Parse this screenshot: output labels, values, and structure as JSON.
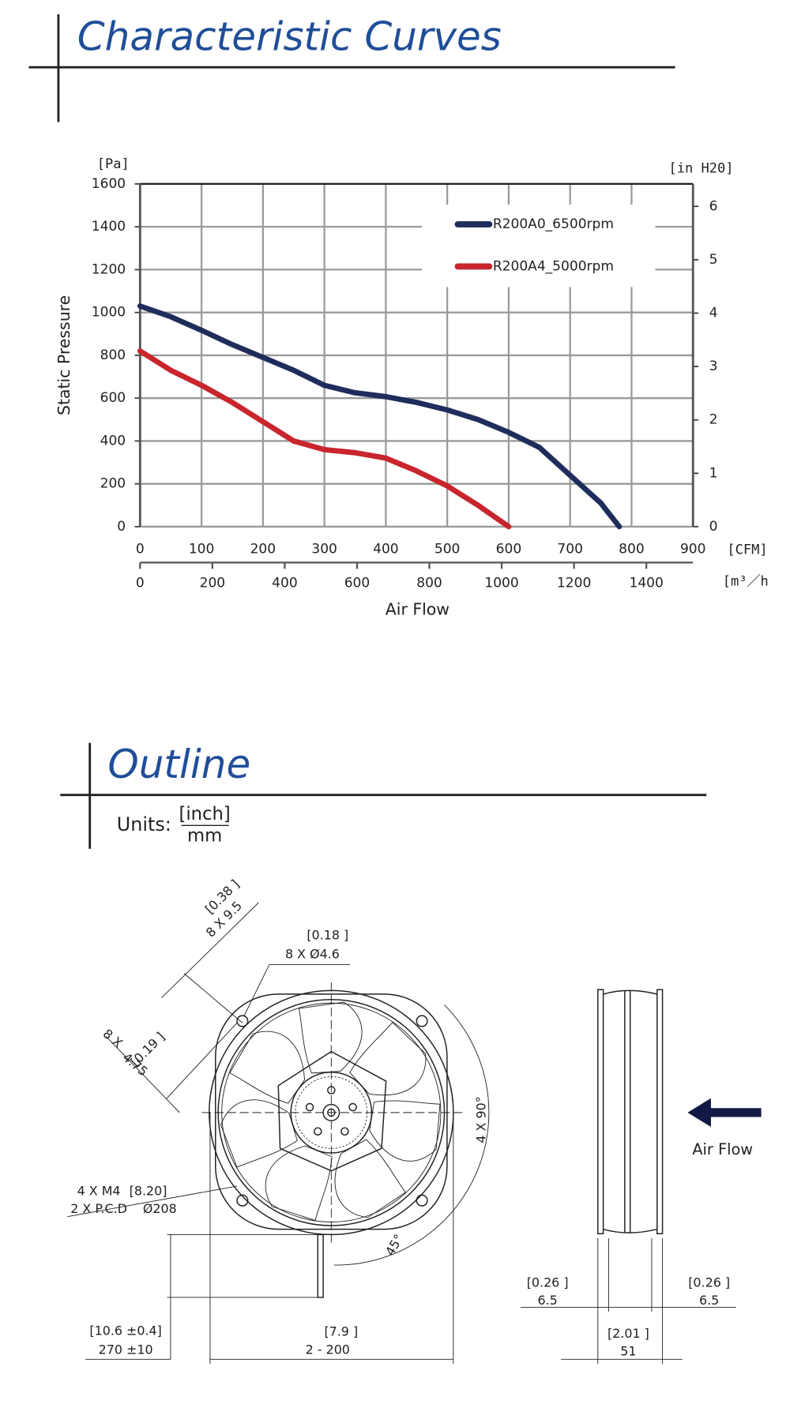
{
  "header": {
    "title": "Characteristic Curves"
  },
  "chart_data": {
    "type": "line",
    "y_unit": "[Pa]",
    "y2_unit": "[in H20]",
    "x_unit": "[CFM]",
    "x2_unit": "[m³／h",
    "ylabel": "Static Pressure",
    "xlabel": "Air Flow",
    "xlim": [
      0,
      900
    ],
    "xticks": [
      0,
      100,
      200,
      300,
      400,
      500,
      600,
      700,
      800,
      900
    ],
    "x2lim": [
      0,
      1529
    ],
    "x2ticks": [
      0,
      200,
      400,
      600,
      800,
      1000,
      1200,
      1400
    ],
    "ylim": [
      0,
      1600
    ],
    "yticks": [
      0,
      200,
      400,
      600,
      800,
      1000,
      1200,
      1400,
      1600
    ],
    "y2lim": [
      0,
      6.42
    ],
    "y2ticks": [
      0,
      1,
      2,
      3,
      4,
      5,
      6
    ],
    "grid": true,
    "legend": "top-right",
    "series": [
      {
        "name": "R200A0_6500rpm",
        "color": "#1f2d5c",
        "x": [
          0,
          50,
          100,
          150,
          200,
          250,
          300,
          350,
          400,
          450,
          500,
          550,
          600,
          650,
          700,
          750,
          780
        ],
        "values": [
          1030,
          980,
          917,
          850,
          790,
          730,
          660,
          625,
          607,
          580,
          545,
          500,
          440,
          370,
          240,
          110,
          0
        ]
      },
      {
        "name": "R200A4_5000rpm",
        "color": "#c8252d",
        "x": [
          0,
          50,
          100,
          150,
          200,
          250,
          300,
          350,
          400,
          450,
          500,
          550,
          600
        ],
        "values": [
          820,
          730,
          660,
          580,
          490,
          400,
          360,
          345,
          320,
          260,
          190,
          100,
          0
        ]
      }
    ]
  },
  "outline": {
    "title": "Outline",
    "units_label": "Units:",
    "units_inch": "[inch]",
    "units_mm": "mm",
    "air_flow": "Air Flow",
    "dimensions": [
      "[0.38 ]",
      "8 X   9.5",
      "[0.18 ]",
      "8 X  Ø4.6",
      "8 X",
      "[0.19 ]",
      "4.75",
      "4 X 90°",
      "4 X M4",
      "[8.20]",
      "2 X P.C.D",
      "Ø208",
      "45°",
      "[10.6 ±0.4]",
      "270 ±10",
      "[7.9 ]",
      "2 -  200",
      "[0.26 ]",
      "6.5",
      "[0.26 ]",
      "6.5",
      "[2.01 ]",
      "51"
    ]
  }
}
